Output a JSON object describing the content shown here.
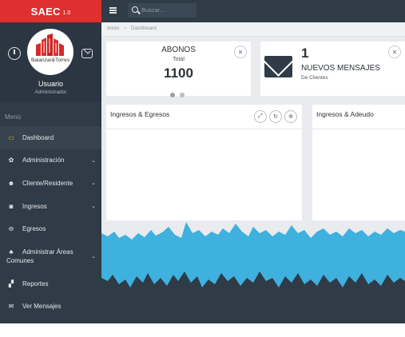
{
  "app": {
    "name": "SAEC",
    "version": "1.0"
  },
  "profile": {
    "logo_caption": "Balanzar&Torres",
    "user_name": "Usuario",
    "user_role": "Administrador"
  },
  "menu_header": "Menú",
  "menu": [
    {
      "label": "Dashboard",
      "icon": "monitor-icon",
      "glyph": "▭",
      "active": true,
      "chevron": false
    },
    {
      "label": "Administración",
      "icon": "cogs-icon",
      "glyph": "✿",
      "active": false,
      "chevron": true
    },
    {
      "label": "Cliente/Residente",
      "icon": "users-icon",
      "glyph": "☻",
      "active": false,
      "chevron": true
    },
    {
      "label": "Ingresos",
      "icon": "money-icon",
      "glyph": "◙",
      "active": false,
      "chevron": true
    },
    {
      "label": "Egresos",
      "icon": "minus-circle-icon",
      "glyph": "⊖",
      "active": false,
      "chevron": false
    },
    {
      "label": "Administrar Áreas Comunes",
      "icon": "area-icon",
      "glyph": "♣",
      "active": false,
      "chevron": true
    },
    {
      "label": "Reportes",
      "icon": "reports-icon",
      "glyph": "▞",
      "active": false,
      "chevron": false
    },
    {
      "label": "Ver Mensajes",
      "icon": "mail-icon",
      "glyph": "✉",
      "active": false,
      "chevron": false
    }
  ],
  "topbar": {
    "search_placeholder": "Buscar..."
  },
  "breadcrumb": {
    "home": "Inicio",
    "current": "Dashboard"
  },
  "abonos_card": {
    "title": "ABONOS",
    "subtitle": "Total",
    "value": "1100"
  },
  "messages_card": {
    "count": "1",
    "title": "NUEVOS MENSAJES",
    "subtitle": "De Clientes"
  },
  "panels": {
    "left_title": "Ingresos & Egresos",
    "right_title": "Ingresos & Adeudo"
  },
  "colors": {
    "brand": "#e02f2f",
    "sidebar": "#2f3b47",
    "accent_wave": "#3eb1de",
    "active_icon": "#f0c000"
  }
}
